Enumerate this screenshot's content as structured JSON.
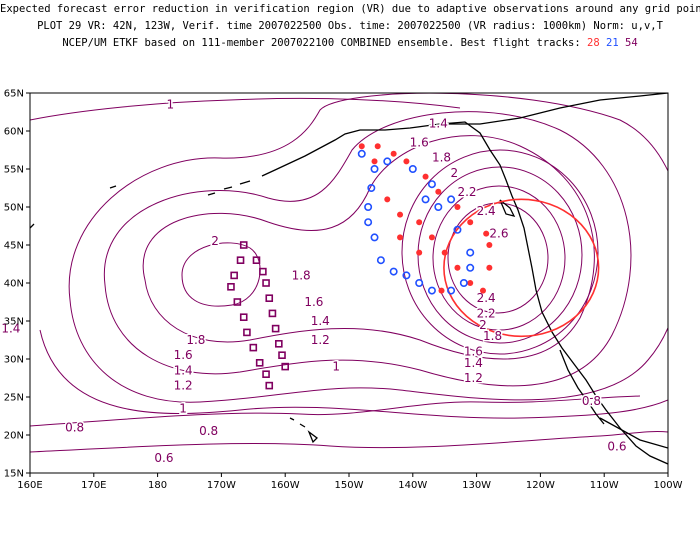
{
  "header": {
    "line1": "Expected forecast error reduction in verification region (VR) due to adaptive observations around any grid point.",
    "line2": "PLOT 29 VR: 42N, 123W, Verif. time 2007022500 Obs. time: 2007022500 (VR radius: 1000km) Norm: u,v,T",
    "line3_prefix": "NCEP/UM ETKF based on 111-member 2007022100 COMBINED ensemble.  Best flight tracks:",
    "track_a": "28",
    "track_b": "21",
    "track_c": "54"
  },
  "axes": {
    "lat_labels": [
      "65N",
      "60N",
      "55N",
      "50N",
      "45N",
      "40N",
      "35N",
      "30N",
      "25N",
      "20N",
      "15N"
    ],
    "lon_labels": [
      "160E",
      "170E",
      "180",
      "170W",
      "160W",
      "150W",
      "140W",
      "130W",
      "120W",
      "110W",
      "100W"
    ]
  },
  "contour_labels": [
    {
      "text": "1",
      "lon": -178,
      "lat": 63.5
    },
    {
      "text": "1.4",
      "lon": -136,
      "lat": 61
    },
    {
      "text": "1.6",
      "lon": -139,
      "lat": 58.5
    },
    {
      "text": "1.8",
      "lon": -135.5,
      "lat": 56.5
    },
    {
      "text": "2",
      "lon": -133.5,
      "lat": 54.5
    },
    {
      "text": "2.2",
      "lon": -131.5,
      "lat": 52
    },
    {
      "text": "2.4",
      "lon": -128.5,
      "lat": 49.5
    },
    {
      "text": "2.6",
      "lon": -126.5,
      "lat": 46.5
    },
    {
      "text": "2",
      "lon": -171,
      "lat": 45.5
    },
    {
      "text": "1.8",
      "lon": -157.5,
      "lat": 41
    },
    {
      "text": "1.6",
      "lon": -155.5,
      "lat": 37.5
    },
    {
      "text": "1.4",
      "lon": -154.5,
      "lat": 35
    },
    {
      "text": "1.2",
      "lon": -154.5,
      "lat": 32.5
    },
    {
      "text": "1",
      "lon": -152,
      "lat": 29
    },
    {
      "text": "1.8",
      "lon": -174,
      "lat": 32.5
    },
    {
      "text": "1.6",
      "lon": -176,
      "lat": 30.5
    },
    {
      "text": "1.4",
      "lon": -176,
      "lat": 28.5
    },
    {
      "text": "1.2",
      "lon": -176,
      "lat": 26.5
    },
    {
      "text": "1",
      "lon": -176,
      "lat": 23.5
    },
    {
      "text": "1.4",
      "lon": 157,
      "lat": 34
    },
    {
      "text": "0.8",
      "lon": 167,
      "lat": 21
    },
    {
      "text": "0.8",
      "lon": -172,
      "lat": 20.5
    },
    {
      "text": "0.6",
      "lon": -179,
      "lat": 17
    },
    {
      "text": "2.4",
      "lon": -128.5,
      "lat": 38
    },
    {
      "text": "2.2",
      "lon": -128.5,
      "lat": 36
    },
    {
      "text": "2",
      "lon": -129,
      "lat": 34.5
    },
    {
      "text": "1.8",
      "lon": -127.5,
      "lat": 33
    },
    {
      "text": "1.6",
      "lon": -130.5,
      "lat": 31
    },
    {
      "text": "1.4",
      "lon": -130.5,
      "lat": 29.5
    },
    {
      "text": "1.2",
      "lon": -130.5,
      "lat": 27.5
    },
    {
      "text": "0.8",
      "lon": -112,
      "lat": 24.5
    },
    {
      "text": "0.6",
      "lon": -108,
      "lat": 18.5
    }
  ],
  "verification_region": {
    "center_lat": 42,
    "center_lon": -123,
    "radius_km": 1000
  },
  "flight_tracks": [
    {
      "id": "28",
      "color": "#ff3030",
      "marker": "dot",
      "points": [
        [
          -148,
          58
        ],
        [
          -145.5,
          58
        ],
        [
          -146,
          56
        ],
        [
          -143,
          57
        ],
        [
          -141,
          56
        ],
        [
          -138,
          54
        ],
        [
          -136,
          52
        ],
        [
          -133,
          50
        ],
        [
          -131,
          48
        ],
        [
          -144,
          51
        ],
        [
          -142,
          49
        ],
        [
          -139,
          48
        ],
        [
          -137,
          46
        ],
        [
          -135,
          44
        ],
        [
          -133,
          42
        ],
        [
          -131,
          40
        ],
        [
          -128.5,
          46.5
        ],
        [
          -128,
          45
        ],
        [
          -128,
          42
        ],
        [
          -129,
          39
        ],
        [
          -135.5,
          39
        ],
        [
          -142,
          46
        ],
        [
          -139,
          44
        ]
      ]
    },
    {
      "id": "21",
      "color": "#2050ff",
      "marker": "ring",
      "points": [
        [
          -148,
          57
        ],
        [
          -146,
          55
        ],
        [
          -144,
          56
        ],
        [
          -140,
          55
        ],
        [
          -137,
          53
        ],
        [
          -134,
          51
        ],
        [
          -146.5,
          52.5
        ],
        [
          -147,
          50
        ],
        [
          -147,
          48
        ],
        [
          -146,
          46
        ],
        [
          -145,
          43
        ],
        [
          -143,
          41.5
        ],
        [
          -141,
          41
        ],
        [
          -139,
          40
        ],
        [
          -137,
          39
        ],
        [
          -134,
          39
        ],
        [
          -132,
          40
        ],
        [
          -131,
          42
        ],
        [
          -131,
          44
        ],
        [
          -133,
          47
        ],
        [
          -136,
          50
        ],
        [
          -138,
          51
        ]
      ]
    },
    {
      "id": "54",
      "color": "#800060",
      "marker": "square",
      "points": [
        [
          -166.5,
          45
        ],
        [
          -167,
          43
        ],
        [
          -168,
          41
        ],
        [
          -168.5,
          39.5
        ],
        [
          -167.5,
          37.5
        ],
        [
          -166.5,
          35.5
        ],
        [
          -166,
          33.5
        ],
        [
          -165,
          31.5
        ],
        [
          -164,
          29.5
        ],
        [
          -163,
          28
        ],
        [
          -162.5,
          26.5
        ],
        [
          -160,
          29
        ],
        [
          -160.5,
          30.5
        ],
        [
          -161,
          32
        ],
        [
          -161.5,
          34
        ],
        [
          -162,
          36
        ],
        [
          -162.5,
          38
        ],
        [
          -163,
          40
        ],
        [
          -163.5,
          41.5
        ],
        [
          -164.5,
          43
        ]
      ]
    }
  ]
}
